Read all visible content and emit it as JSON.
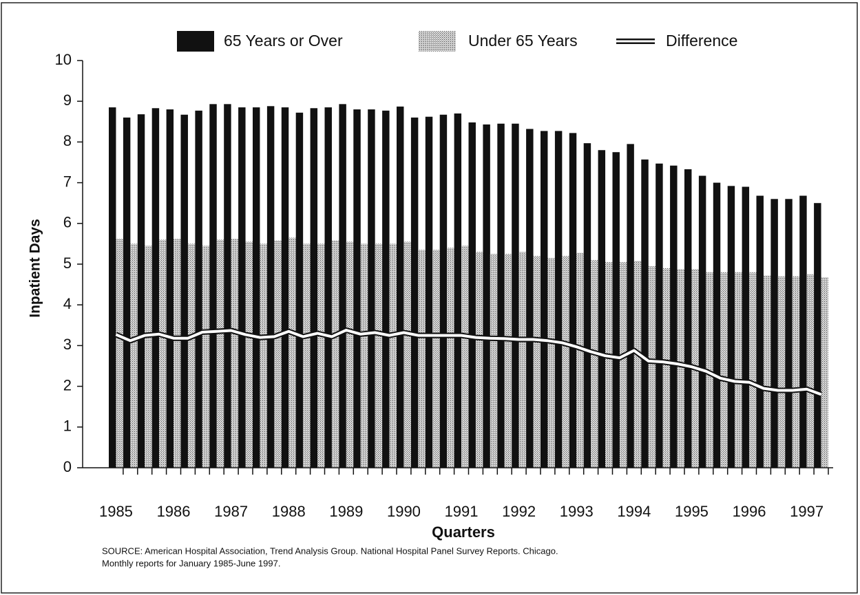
{
  "chart_data": {
    "type": "bar",
    "ylabel": "Inpatient Days",
    "xlabel": "Quarters",
    "source": [
      "SOURCE: American Hospital Association, Trend Analysis Group. National Hospital Panel Survey Reports. Chicago.",
      "Monthly reports for January 1985-June 1997."
    ],
    "categories": [
      "1985",
      null,
      null,
      null,
      "1986",
      null,
      null,
      null,
      "1987",
      null,
      null,
      null,
      "1988",
      null,
      null,
      null,
      "1989",
      null,
      null,
      null,
      "1990",
      null,
      null,
      null,
      "1991",
      null,
      null,
      null,
      "1992",
      null,
      null,
      null,
      "1993",
      null,
      null,
      null,
      "1994",
      null,
      null,
      null,
      "1995",
      null,
      null,
      null,
      "1996",
      null,
      null,
      null,
      "1997",
      null
    ],
    "series": [
      {
        "name": "65 Years or Over",
        "color": "#111111",
        "values": [
          8.85,
          8.6,
          8.68,
          8.83,
          8.8,
          8.67,
          8.77,
          8.93,
          8.93,
          8.85,
          8.85,
          8.88,
          8.85,
          8.72,
          8.83,
          8.85,
          8.93,
          8.8,
          8.8,
          8.77,
          8.87,
          8.6,
          8.62,
          8.67,
          8.7,
          8.48,
          8.43,
          8.45,
          8.45,
          8.32,
          8.27,
          8.27,
          8.22,
          7.97,
          7.8,
          7.75,
          7.95,
          7.57,
          7.47,
          7.42,
          7.33,
          7.17,
          7.0,
          6.92,
          6.9,
          6.68,
          6.6,
          6.6,
          6.68,
          6.5
        ]
      },
      {
        "name": "Under 65 Years",
        "color": "#a8a8a8",
        "values": [
          5.62,
          5.5,
          5.45,
          5.6,
          5.62,
          5.5,
          5.45,
          5.6,
          5.62,
          5.55,
          5.5,
          5.58,
          5.65,
          5.5,
          5.5,
          5.58,
          5.55,
          5.5,
          5.5,
          5.5,
          5.55,
          5.35,
          5.35,
          5.4,
          5.45,
          5.3,
          5.25,
          5.25,
          5.3,
          5.2,
          5.15,
          5.2,
          5.28,
          5.1,
          5.05,
          5.05,
          5.08,
          4.95,
          4.9,
          4.88,
          4.88,
          4.8,
          4.8,
          4.8,
          4.8,
          4.72,
          4.7,
          4.7,
          4.75,
          4.68
        ]
      },
      {
        "name": "Difference",
        "type": "line",
        "color": "#ffffff",
        "values": [
          3.27,
          3.12,
          3.25,
          3.28,
          3.18,
          3.18,
          3.33,
          3.35,
          3.37,
          3.27,
          3.2,
          3.22,
          3.35,
          3.22,
          3.3,
          3.22,
          3.38,
          3.28,
          3.32,
          3.25,
          3.32,
          3.25,
          3.25,
          3.25,
          3.25,
          3.2,
          3.18,
          3.17,
          3.15,
          3.15,
          3.12,
          3.07,
          2.97,
          2.85,
          2.75,
          2.7,
          2.88,
          2.62,
          2.6,
          2.55,
          2.48,
          2.37,
          2.2,
          2.12,
          2.1,
          1.95,
          1.9,
          1.9,
          1.93,
          1.8
        ]
      }
    ],
    "ylim": [
      0,
      10
    ],
    "yticks": [
      0,
      1,
      2,
      3,
      4,
      5,
      6,
      7,
      8,
      9,
      10
    ],
    "grid": false,
    "legend": "top"
  }
}
